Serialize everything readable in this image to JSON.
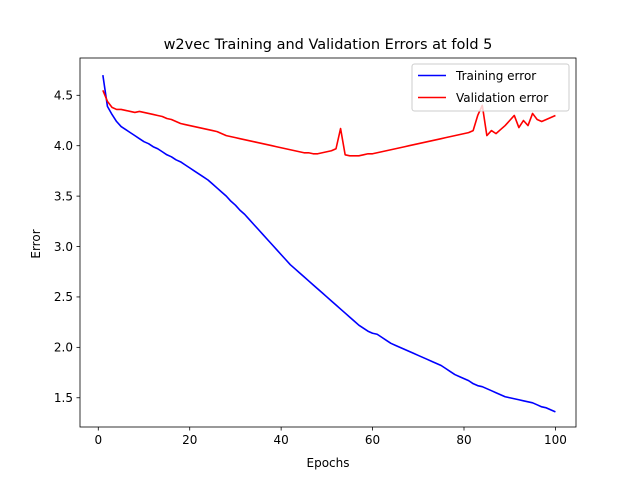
{
  "chart_data": {
    "type": "line",
    "title": "w2vec Training and Validation Errors at fold 5",
    "xlabel": "Epochs",
    "ylabel": "Error",
    "xlim": [
      -4,
      104.5
    ],
    "ylim": [
      1.21,
      4.87
    ],
    "xticks": [
      0,
      20,
      40,
      60,
      80,
      100
    ],
    "yticks": [
      1.5,
      2.0,
      2.5,
      3.0,
      3.5,
      4.0,
      4.5
    ],
    "xtick_labels": [
      "0",
      "20",
      "40",
      "60",
      "80",
      "100"
    ],
    "ytick_labels": [
      "1.5",
      "2.0",
      "2.5",
      "3.0",
      "3.5",
      "4.0",
      "4.5"
    ],
    "grid": false,
    "legend_position": "top-right",
    "x": [
      1,
      2,
      3,
      4,
      5,
      6,
      7,
      8,
      9,
      10,
      11,
      12,
      13,
      14,
      15,
      16,
      17,
      18,
      19,
      20,
      21,
      22,
      23,
      24,
      25,
      26,
      27,
      28,
      29,
      30,
      31,
      32,
      33,
      34,
      35,
      36,
      37,
      38,
      39,
      40,
      41,
      42,
      43,
      44,
      45,
      46,
      47,
      48,
      49,
      50,
      51,
      52,
      53,
      54,
      55,
      56,
      57,
      58,
      59,
      60,
      61,
      62,
      63,
      64,
      65,
      66,
      67,
      68,
      69,
      70,
      71,
      72,
      73,
      74,
      75,
      76,
      77,
      78,
      79,
      80,
      81,
      82,
      83,
      84,
      85,
      86,
      87,
      88,
      89,
      90,
      91,
      92,
      93,
      94,
      95,
      96,
      97,
      98,
      99,
      100
    ],
    "series": [
      {
        "name": "Training error",
        "color": "#0000ff",
        "values": [
          4.7,
          4.39,
          4.31,
          4.24,
          4.19,
          4.16,
          4.13,
          4.1,
          4.07,
          4.04,
          4.02,
          3.99,
          3.97,
          3.94,
          3.91,
          3.89,
          3.86,
          3.84,
          3.81,
          3.78,
          3.75,
          3.72,
          3.69,
          3.66,
          3.62,
          3.58,
          3.54,
          3.5,
          3.45,
          3.41,
          3.36,
          3.32,
          3.27,
          3.22,
          3.17,
          3.12,
          3.07,
          3.02,
          2.97,
          2.92,
          2.87,
          2.82,
          2.78,
          2.74,
          2.7,
          2.66,
          2.62,
          2.58,
          2.54,
          2.5,
          2.46,
          2.42,
          2.38,
          2.34,
          2.3,
          2.26,
          2.22,
          2.19,
          2.16,
          2.14,
          2.13,
          2.1,
          2.07,
          2.04,
          2.02,
          2.0,
          1.98,
          1.96,
          1.94,
          1.92,
          1.9,
          1.88,
          1.86,
          1.84,
          1.82,
          1.79,
          1.76,
          1.73,
          1.71,
          1.69,
          1.67,
          1.64,
          1.62,
          1.61,
          1.59,
          1.57,
          1.55,
          1.53,
          1.51,
          1.5,
          1.49,
          1.48,
          1.47,
          1.46,
          1.45,
          1.43,
          1.41,
          1.4,
          1.38,
          1.36
        ]
      },
      {
        "name": "Validation error",
        "color": "#ff0000",
        "values": [
          4.55,
          4.44,
          4.38,
          4.36,
          4.36,
          4.35,
          4.34,
          4.33,
          4.34,
          4.33,
          4.32,
          4.31,
          4.3,
          4.29,
          4.27,
          4.26,
          4.24,
          4.22,
          4.21,
          4.2,
          4.19,
          4.18,
          4.17,
          4.16,
          4.15,
          4.14,
          4.12,
          4.1,
          4.09,
          4.08,
          4.07,
          4.06,
          4.05,
          4.04,
          4.03,
          4.02,
          4.01,
          4.0,
          3.99,
          3.98,
          3.97,
          3.96,
          3.95,
          3.94,
          3.93,
          3.93,
          3.92,
          3.92,
          3.93,
          3.94,
          3.95,
          3.97,
          4.17,
          3.91,
          3.9,
          3.9,
          3.9,
          3.91,
          3.92,
          3.92,
          3.93,
          3.94,
          3.95,
          3.96,
          3.97,
          3.98,
          3.99,
          4.0,
          4.01,
          4.02,
          4.03,
          4.04,
          4.05,
          4.06,
          4.07,
          4.08,
          4.09,
          4.1,
          4.11,
          4.12,
          4.13,
          4.15,
          4.3,
          4.4,
          4.1,
          4.15,
          4.12,
          4.16,
          4.2,
          4.25,
          4.3,
          4.18,
          4.25,
          4.2,
          4.32,
          4.26,
          4.24,
          4.26,
          4.28,
          4.3
        ]
      }
    ]
  }
}
